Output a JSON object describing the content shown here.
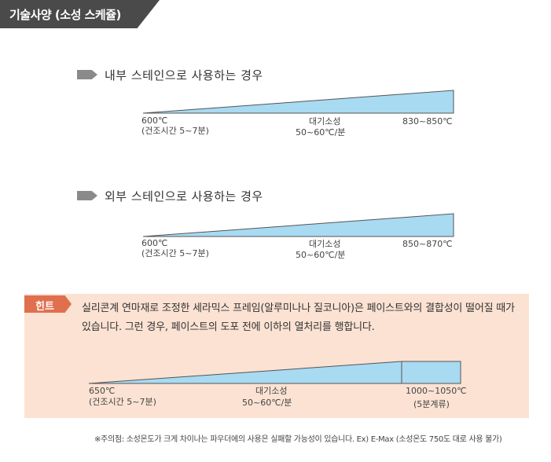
{
  "header": {
    "title": "기술사양 (소성 스케쥴)"
  },
  "colors": {
    "ramp_fill": "#a8daf2",
    "ramp_stroke": "#555555",
    "hint_bg": "#fbe2d3",
    "hint_badge": "#e06f4d",
    "header_bg": "#4a4a4a"
  },
  "sections": [
    {
      "title": "내부 스테인으로 사용하는 경우",
      "start_temp": "600℃",
      "start_note": "(건조시간 5~7분)",
      "mid_label": "대기소성",
      "mid_note": "50~60℃/분",
      "end_temp": "830~850℃"
    },
    {
      "title": "외부 스테인으로 사용하는 경우",
      "start_temp": "600℃",
      "start_note": "(건조시간 5~7분)",
      "mid_label": "대기소성",
      "mid_note": "50~60℃/분",
      "end_temp": "850~870℃"
    }
  ],
  "hint": {
    "badge": "힌트",
    "text": "실리콘계 연마재로 조정한 세라믹스 프레임(알루미나나 질코니아)은 페이스트와의 결합성이 떨어질 때가 있습니다. 그런 경우, 페이스트의 도포 전에 이하의 열처리를 행합니다.",
    "start_temp": "650℃",
    "start_note": "(건조시간 5~7분)",
    "mid_label": "대기소성",
    "mid_note": "50~60℃/분",
    "end_temp": "1000~1050℃",
    "end_note": "(5분계류)"
  },
  "footnote": "※주의점: 소성온도가 크게 차이나는 파우더에의 사용은 실패할 가능성이 있습니다. Ex) E-Max (소성온도 750도 대로 사용 불가)"
}
